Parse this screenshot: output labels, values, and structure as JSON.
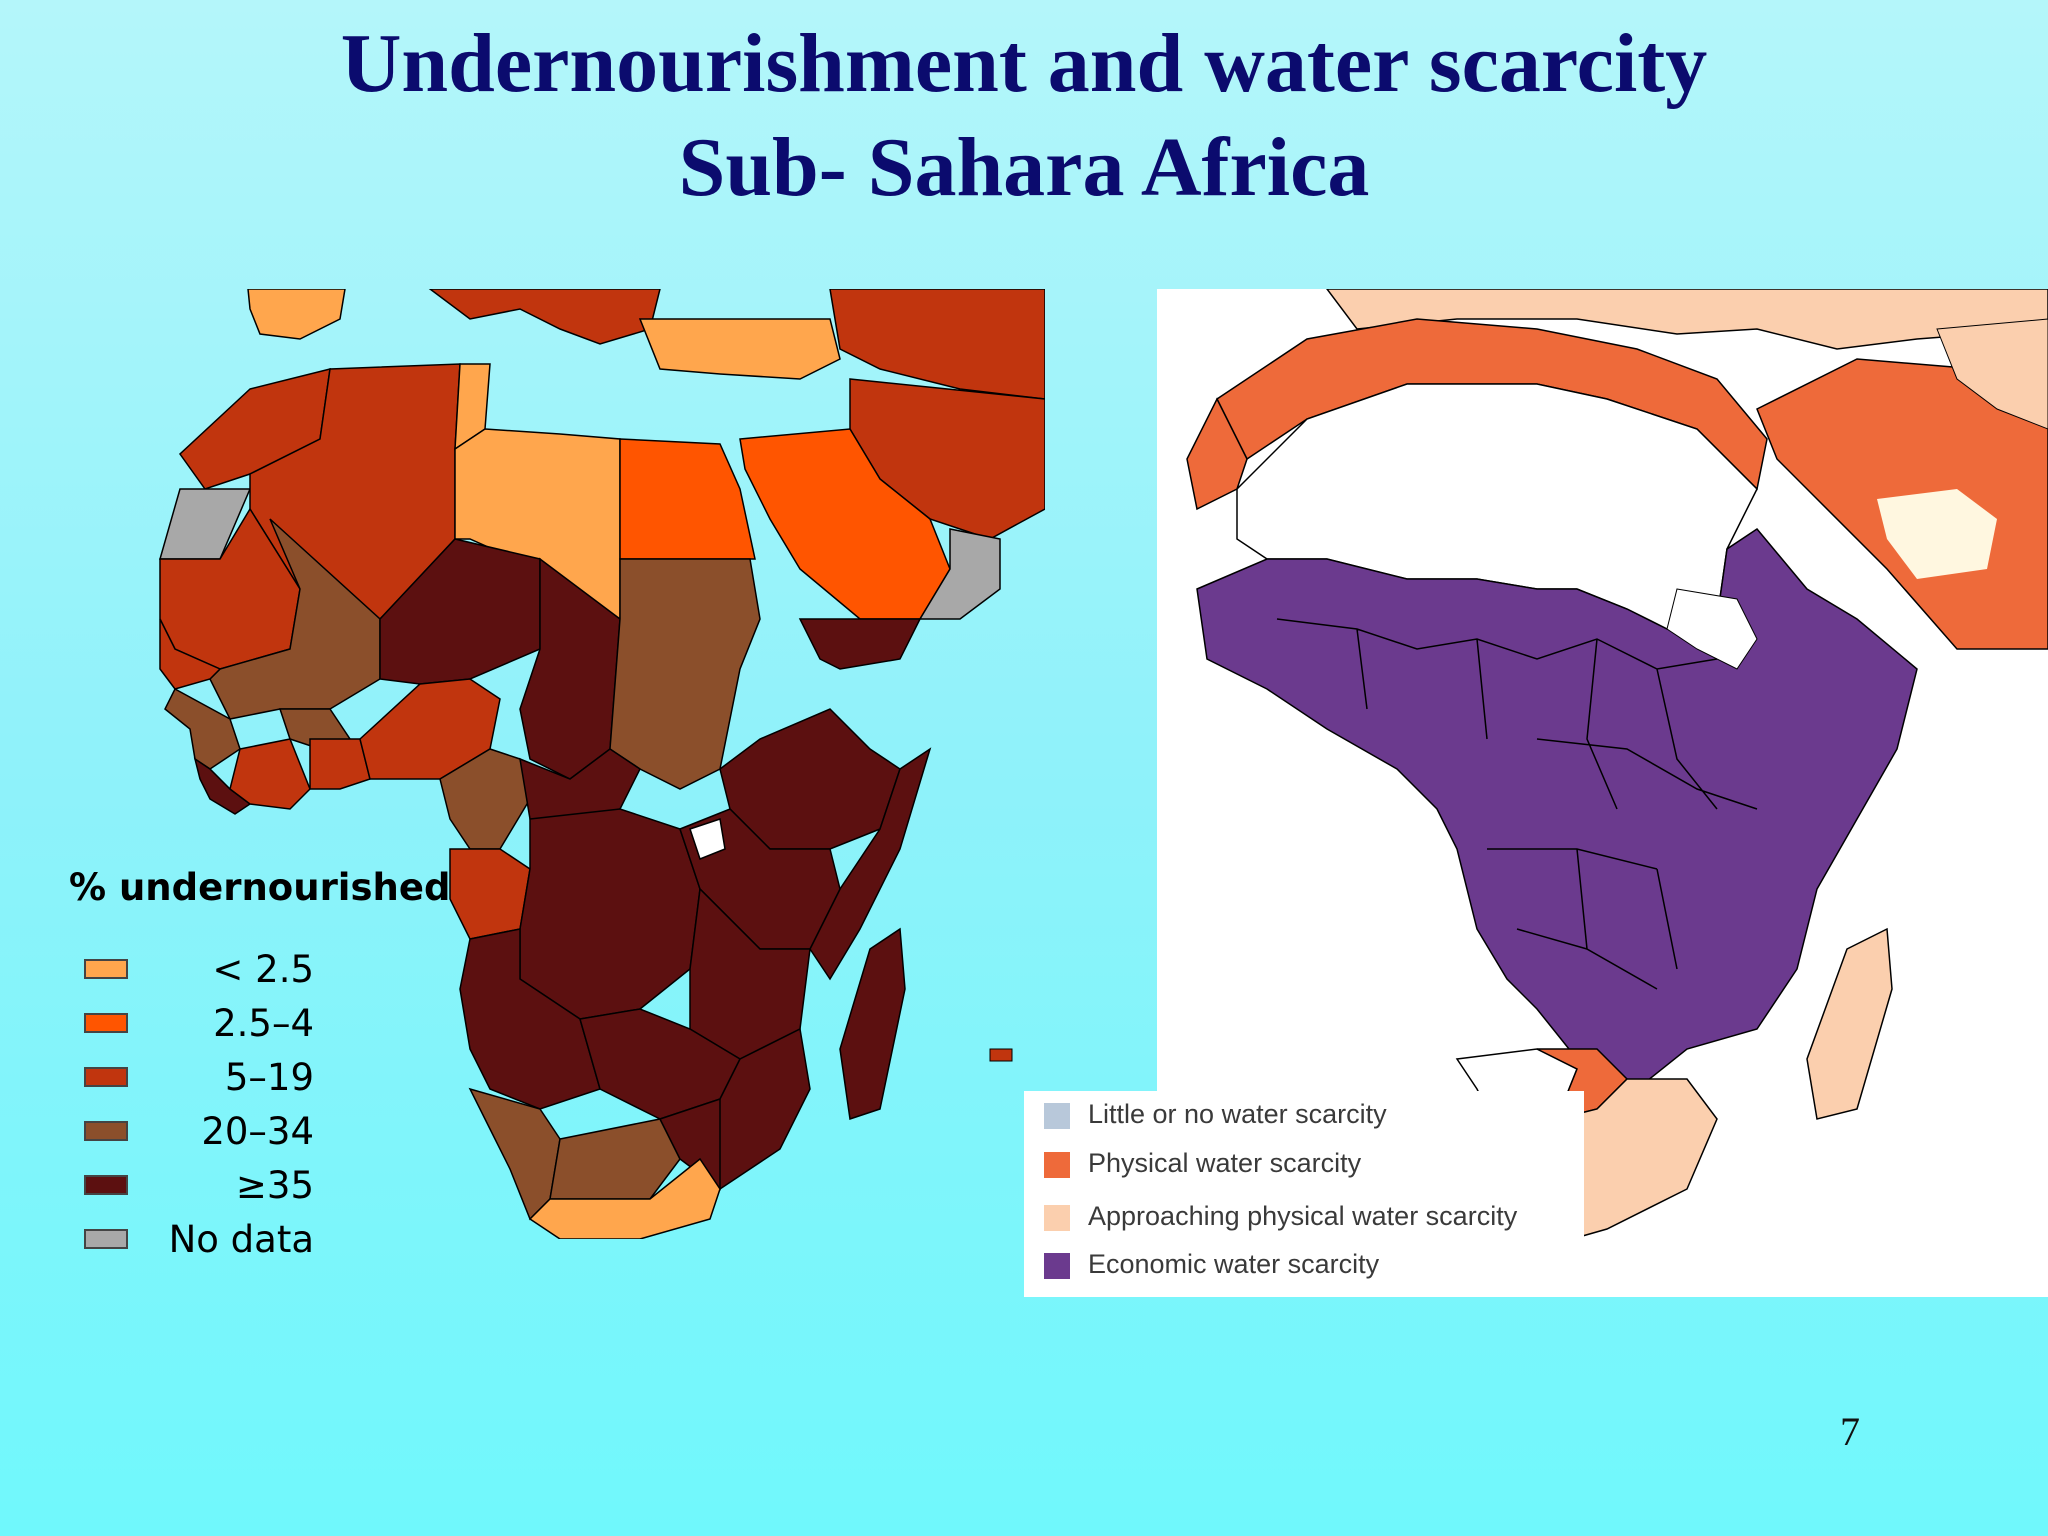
{
  "slide": {
    "title_line1": "Undernourishment and water scarcity",
    "title_line2": "Sub- Sahara Africa",
    "page_number": "7"
  },
  "undernourishment_map": {
    "legend_title": "% undernourished",
    "legend": [
      {
        "label": "< 2.5",
        "color": "#ffa64d"
      },
      {
        "label": "2.5–4",
        "color": "#ff5500"
      },
      {
        "label": "5–19",
        "color": "#c1350e"
      },
      {
        "label": "20–34",
        "color": "#8b4f2b"
      },
      {
        "label": "≥35",
        "color": "#5c1010"
      },
      {
        "label": "No data",
        "color": "#a8a8a8"
      }
    ]
  },
  "water_scarcity_map": {
    "legend": [
      {
        "label": "Little or no water scarcity",
        "color": "#b8c8da"
      },
      {
        "label": "Physical water scarcity",
        "color": "#ee6a3a"
      },
      {
        "label": "Approaching physical water scarcity",
        "color": "#fbcfae"
      },
      {
        "label": "Economic water scarcity",
        "color": "#6b3a8e"
      }
    ]
  }
}
